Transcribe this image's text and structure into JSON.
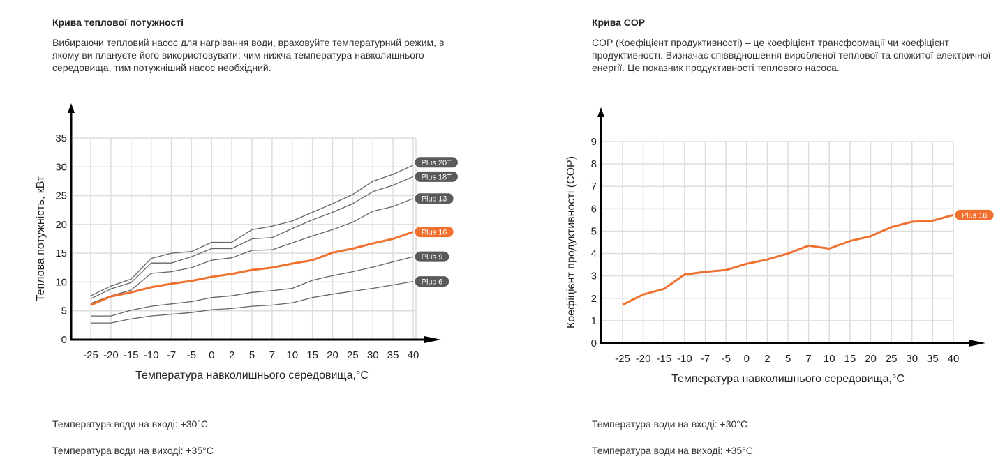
{
  "left": {
    "title": "Крива теплової потужності",
    "description": "Вибираючи тепловий насос для нагрівання води, враховуйте температурний режим, в якому ви плануєте його використовувати: чим нижча температура навколишнього середовища, тим потужніший насос необхідний.",
    "note_in": "Температура води на вході: +30°C",
    "note_out": "Температура води на виході: +35°C"
  },
  "right": {
    "title": "Крива COP",
    "description": "COP (Коефіцієнт продуктивності) – це коефіцієнт трансформації чи коефіцієнт продуктивності. Визначає співвідношення виробленої теплової та спожитої електричної енергії. Це показник продуктивності теплового насоса.",
    "note_in": "Температура води на вході: +30°C",
    "note_out": "Температура води на виході: +35°C"
  },
  "colors": {
    "accent": "#f07030",
    "series_gray": "#666666",
    "label_gray": "#5a5a5a",
    "grid": "#dddddd"
  },
  "chart_data": [
    {
      "type": "line",
      "title": "Крива теплової потужності",
      "xlabel": "Температура навколишнього середовища,°C",
      "ylabel": "Теплова потужність, кВт",
      "categories": [
        "-25",
        "-20",
        "-15",
        "-10",
        "-7",
        "-5",
        "0",
        "2",
        "5",
        "7",
        "10",
        "15",
        "20",
        "25",
        "30",
        "35",
        "40"
      ],
      "ylim": [
        0,
        35
      ],
      "yticks": [
        0,
        5,
        10,
        15,
        20,
        25,
        30,
        35
      ],
      "grid": true,
      "legend": "right-end labels",
      "series": [
        {
          "name": "Plus 20T",
          "highlight": false,
          "values": [
            7.6,
            9.3,
            10.5,
            14.1,
            15.0,
            15.3,
            16.9,
            16.9,
            19.1,
            19.7,
            20.6,
            22.1,
            23.6,
            25.2,
            27.5,
            28.7,
            30.3
          ]
        },
        {
          "name": "Plus 18T",
          "highlight": false,
          "values": [
            7.1,
            8.8,
            9.9,
            13.3,
            13.3,
            14.4,
            15.8,
            15.8,
            17.5,
            17.7,
            19.3,
            20.8,
            22.1,
            23.6,
            25.7,
            26.8,
            28.3
          ]
        },
        {
          "name": "Plus 13",
          "highlight": false,
          "values": [
            6.3,
            7.6,
            8.6,
            11.5,
            11.8,
            12.5,
            13.8,
            14.2,
            15.5,
            15.6,
            16.8,
            18.0,
            19.1,
            20.4,
            22.3,
            23.1,
            24.5
          ]
        },
        {
          "name": "Plus 16",
          "highlight": true,
          "values": [
            6.0,
            7.5,
            8.2,
            9.1,
            9.7,
            10.2,
            10.9,
            11.4,
            12.1,
            12.5,
            13.2,
            13.8,
            15.1,
            15.8,
            16.7,
            17.5,
            18.7
          ]
        },
        {
          "name": "Plus 9",
          "highlight": false,
          "values": [
            4.1,
            4.1,
            5.1,
            5.8,
            6.2,
            6.6,
            7.3,
            7.6,
            8.2,
            8.5,
            8.9,
            10.3,
            11.1,
            11.8,
            12.6,
            13.5,
            14.4
          ]
        },
        {
          "name": "Plus 6",
          "highlight": false,
          "values": [
            2.9,
            2.9,
            3.6,
            4.1,
            4.4,
            4.7,
            5.2,
            5.4,
            5.8,
            6.0,
            6.4,
            7.3,
            7.9,
            8.4,
            8.9,
            9.5,
            10.1
          ]
        }
      ]
    },
    {
      "type": "line",
      "title": "Крива COP",
      "xlabel": "Температура навколишнього середовища,°C",
      "ylabel": "Коефіцієнт продуктивності (COP)",
      "categories": [
        "-25",
        "-20",
        "-15",
        "-10",
        "-7",
        "-5",
        "0",
        "2",
        "5",
        "7",
        "10",
        "15",
        "20",
        "25",
        "30",
        "35",
        "40"
      ],
      "ylim": [
        0,
        9
      ],
      "yticks": [
        0,
        1,
        2,
        3,
        4,
        5,
        6,
        7,
        8,
        9
      ],
      "grid": true,
      "legend": "right-end label",
      "series": [
        {
          "name": "Plus 16",
          "highlight": true,
          "values": [
            1.71,
            2.17,
            2.42,
            3.06,
            3.18,
            3.26,
            3.54,
            3.73,
            4.0,
            4.35,
            4.22,
            4.56,
            4.77,
            5.18,
            5.42,
            5.47,
            5.72
          ]
        }
      ]
    }
  ]
}
